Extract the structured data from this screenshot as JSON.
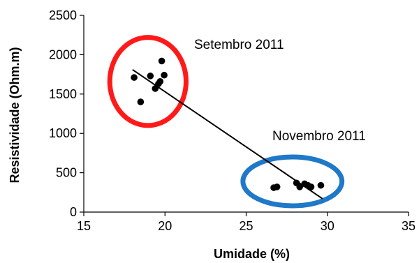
{
  "chart_data": {
    "type": "scatter",
    "title": "",
    "xlabel": "Umidade (%)",
    "ylabel": "Resistividade (Ohm.m)",
    "xlim": [
      15,
      35
    ],
    "ylim": [
      0,
      2500
    ],
    "x_ticks": [
      "15",
      "20",
      "25",
      "30",
      "35"
    ],
    "y_ticks": [
      "0",
      "500",
      "1000",
      "1500",
      "2000",
      "2500"
    ],
    "grid": false,
    "legend": "none",
    "series": [
      {
        "color": "#000000",
        "points": [
          {
            "x": 18.1,
            "y": 1710
          },
          {
            "x": 18.5,
            "y": 1400
          },
          {
            "x": 19.1,
            "y": 1730
          },
          {
            "x": 19.4,
            "y": 1570
          },
          {
            "x": 19.6,
            "y": 1630
          },
          {
            "x": 19.7,
            "y": 1660
          },
          {
            "x": 19.8,
            "y": 1920
          },
          {
            "x": 19.95,
            "y": 1740
          },
          {
            "x": 26.7,
            "y": 310
          },
          {
            "x": 26.9,
            "y": 320
          },
          {
            "x": 28.1,
            "y": 370
          },
          {
            "x": 28.3,
            "y": 320
          },
          {
            "x": 28.6,
            "y": 360
          },
          {
            "x": 28.8,
            "y": 340
          },
          {
            "x": 29.0,
            "y": 320
          },
          {
            "x": 29.6,
            "y": 340
          }
        ]
      }
    ],
    "trendline": {
      "x": [
        18.0,
        29.7
      ],
      "y": [
        1810,
        170
      ],
      "color": "#000000"
    },
    "annotations": [
      {
        "text": "Setembro 2011",
        "ellipse_color": "#ff1a1a",
        "center": {
          "x": 18.95,
          "y": 1660
        },
        "radius": {
          "x": 2.35,
          "y": 560
        }
      },
      {
        "text": "Novembro 2011",
        "ellipse_color": "#1f78c8",
        "center": {
          "x": 27.85,
          "y": 390
        },
        "radius": {
          "x": 3.05,
          "y": 310
        }
      }
    ]
  }
}
